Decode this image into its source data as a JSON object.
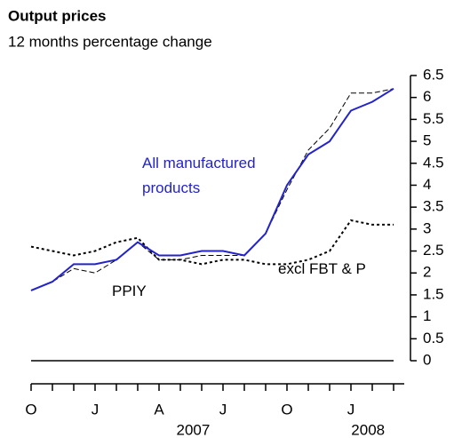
{
  "chart_data": {
    "type": "line",
    "title": "Output prices",
    "subtitle": "12 months percentage change",
    "categories": [
      "O",
      null,
      null,
      "J",
      null,
      null,
      "A",
      null,
      null,
      "J",
      null,
      null,
      "O",
      null,
      null,
      "J",
      null,
      null
    ],
    "year_labels": [
      "2007",
      "2008"
    ],
    "series": [
      {
        "name": "All manufactured products",
        "color": "#2323c8",
        "style": "solid",
        "values": [
          1.6,
          1.8,
          2.2,
          2.2,
          2.3,
          2.7,
          2.4,
          2.4,
          2.5,
          2.5,
          2.4,
          2.9,
          4.0,
          4.7,
          5.0,
          5.7,
          5.9,
          6.2
        ]
      },
      {
        "name": "PPIY",
        "color": "#000000",
        "style": "dashed",
        "values": [
          1.6,
          1.8,
          2.1,
          2.0,
          2.3,
          2.7,
          2.3,
          2.3,
          2.4,
          2.4,
          2.4,
          2.9,
          3.9,
          4.8,
          5.3,
          6.1,
          6.1,
          6.2
        ]
      },
      {
        "name": "excl FBT & P",
        "color": "#000000",
        "style": "dotted",
        "values": [
          2.6,
          2.5,
          2.4,
          2.5,
          2.7,
          2.8,
          2.3,
          2.3,
          2.2,
          2.3,
          2.3,
          2.2,
          2.2,
          2.3,
          2.5,
          3.2,
          3.1,
          3.1
        ]
      }
    ],
    "ylim": [
      0,
      6.5
    ],
    "yticks": [
      0,
      0.5,
      1,
      1.5,
      2,
      2.5,
      3,
      3.5,
      4,
      4.5,
      5,
      5.5,
      6,
      6.5
    ],
    "zero_line": true
  }
}
